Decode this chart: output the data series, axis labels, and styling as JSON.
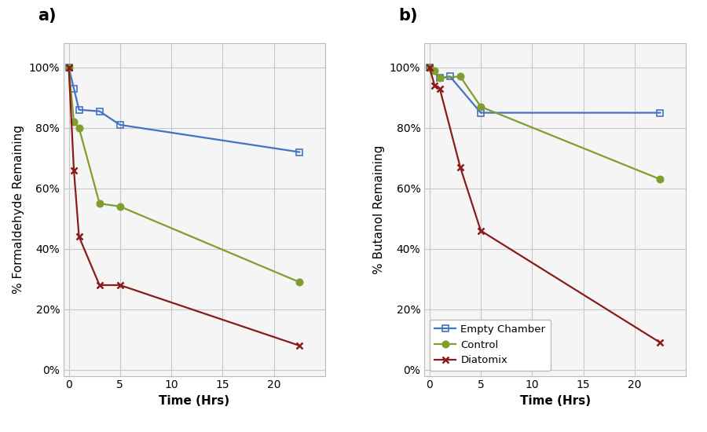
{
  "panel_a": {
    "label": "a)",
    "ylabel": "% Formaldehyde Remaining",
    "xlabel": "Time (Hrs)",
    "xlim": [
      -0.5,
      25
    ],
    "ylim": [
      -0.02,
      1.08
    ],
    "xticks": [
      0,
      5,
      10,
      15,
      20
    ],
    "yticks": [
      0.0,
      0.2,
      0.4,
      0.6,
      0.8,
      1.0
    ],
    "series": {
      "empty_chamber": {
        "x": [
          0,
          0.5,
          1,
          3,
          5,
          22.5
        ],
        "y": [
          1.0,
          0.93,
          0.86,
          0.855,
          0.81,
          0.72
        ],
        "color": "#4472C4",
        "marker": "s",
        "label": "Empty Chamber"
      },
      "control": {
        "x": [
          0,
          0.5,
          1,
          3,
          5,
          22.5
        ],
        "y": [
          1.0,
          0.82,
          0.8,
          0.55,
          0.54,
          0.29
        ],
        "color": "#7F9E2E",
        "marker": "o",
        "label": "Control"
      },
      "diatomix": {
        "x": [
          0,
          0.5,
          1,
          3,
          5,
          22.5
        ],
        "y": [
          1.0,
          0.66,
          0.44,
          0.28,
          0.28,
          0.08
        ],
        "color": "#8B1A1A",
        "marker": "x",
        "label": "Diatomix"
      }
    }
  },
  "panel_b": {
    "label": "b)",
    "ylabel": "% Butanol Remaining",
    "xlabel": "Time (Hrs)",
    "xlim": [
      -0.5,
      25
    ],
    "ylim": [
      -0.02,
      1.08
    ],
    "xticks": [
      0,
      5,
      10,
      15,
      20
    ],
    "yticks": [
      0.0,
      0.2,
      0.4,
      0.6,
      0.8,
      1.0
    ],
    "series": {
      "empty_chamber": {
        "x": [
          0,
          1,
          2,
          5,
          22.5
        ],
        "y": [
          1.0,
          0.965,
          0.97,
          0.85,
          0.85
        ],
        "color": "#4472C4",
        "marker": "s",
        "label": "Empty Chamber"
      },
      "control": {
        "x": [
          0,
          0.5,
          1,
          3,
          5,
          22.5
        ],
        "y": [
          1.0,
          0.99,
          0.965,
          0.97,
          0.87,
          0.63
        ],
        "color": "#7F9E2E",
        "marker": "o",
        "label": "Control"
      },
      "diatomix": {
        "x": [
          0,
          0.5,
          1,
          3,
          5,
          22.5
        ],
        "y": [
          1.0,
          0.94,
          0.93,
          0.67,
          0.46,
          0.09
        ],
        "color": "#8B1A1A",
        "marker": "x",
        "label": "Diatomix"
      }
    }
  },
  "background_color": "#ffffff",
  "plot_bg_color": "#f5f5f5",
  "grid_color": "#c8c8c8",
  "legend_loc": "lower left",
  "marker_size": 6,
  "line_width": 1.6,
  "tick_label_fontsize": 10,
  "axis_label_fontsize": 11,
  "panel_label_fontsize": 15
}
